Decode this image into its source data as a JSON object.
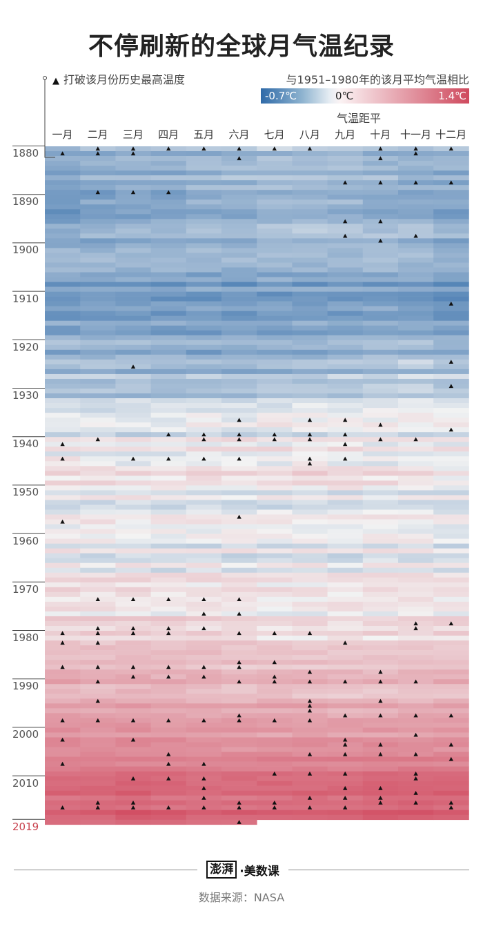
{
  "title": "不停刷新的全球月气温纪录",
  "legend": {
    "record_marker": "▲",
    "record_label": "打破该月份历史最高温度",
    "caption": "与1951–1980年的该月平均气温相比",
    "min_label": "-0.7℃",
    "zero_label": "0℃",
    "max_label": "1.4℃",
    "anomaly_title": "气温距平"
  },
  "colors": {
    "cold": "#2f6aa8",
    "neutral": "#f3f3f3",
    "warm": "#c81f3a",
    "marker": "#111111",
    "final_year": "#c9434f"
  },
  "chart_data": {
    "type": "heatmap",
    "title": "不停刷新的全球月气温纪录",
    "xlabel": "",
    "ylabel": "",
    "months": [
      "一月",
      "二月",
      "三月",
      "四月",
      "五月",
      "六月",
      "七月",
      "八月",
      "九月",
      "十月",
      "十一月",
      "十二月"
    ],
    "year_range": [
      1880,
      2019
    ],
    "year_ticks": [
      "1880",
      "1890",
      "1900",
      "1910",
      "1920",
      "1930",
      "1940",
      "1950",
      "1960",
      "1970",
      "1980",
      "1990",
      "2000",
      "2010",
      "2019"
    ],
    "value_range": [
      -0.7,
      1.4
    ],
    "value_unit": "℃",
    "last_year_months_available": 6,
    "decadal_anomaly_by_month": [
      {
        "decade": "1880s",
        "values": [
          -0.34,
          -0.3,
          -0.28,
          -0.3,
          -0.28,
          -0.26,
          -0.22,
          -0.24,
          -0.24,
          -0.28,
          -0.3,
          -0.3
        ]
      },
      {
        "decade": "1890s",
        "values": [
          -0.42,
          -0.38,
          -0.34,
          -0.32,
          -0.3,
          -0.3,
          -0.26,
          -0.26,
          -0.28,
          -0.3,
          -0.32,
          -0.36
        ]
      },
      {
        "decade": "1900s",
        "values": [
          -0.34,
          -0.36,
          -0.36,
          -0.38,
          -0.38,
          -0.38,
          -0.36,
          -0.36,
          -0.36,
          -0.34,
          -0.34,
          -0.38
        ]
      },
      {
        "decade": "1910s",
        "values": [
          -0.4,
          -0.38,
          -0.4,
          -0.4,
          -0.4,
          -0.4,
          -0.4,
          -0.4,
          -0.38,
          -0.36,
          -0.38,
          -0.44
        ]
      },
      {
        "decade": "1920s",
        "values": [
          -0.24,
          -0.26,
          -0.24,
          -0.26,
          -0.28,
          -0.28,
          -0.28,
          -0.26,
          -0.24,
          -0.22,
          -0.18,
          -0.22
        ]
      },
      {
        "decade": "1930s",
        "values": [
          -0.14,
          -0.14,
          -0.14,
          -0.14,
          -0.12,
          -0.12,
          -0.1,
          -0.1,
          -0.08,
          -0.08,
          -0.08,
          -0.1
        ]
      },
      {
        "decade": "1940s",
        "values": [
          0.06,
          0.06,
          0.04,
          0.06,
          0.06,
          0.06,
          0.06,
          0.08,
          0.06,
          0.04,
          0.02,
          0.02
        ]
      },
      {
        "decade": "1950s",
        "values": [
          -0.06,
          -0.06,
          -0.06,
          -0.06,
          -0.06,
          -0.06,
          -0.06,
          -0.06,
          -0.06,
          -0.06,
          -0.06,
          -0.08
        ]
      },
      {
        "decade": "1960s",
        "values": [
          0.0,
          0.0,
          0.0,
          -0.02,
          -0.02,
          -0.02,
          -0.02,
          -0.02,
          -0.04,
          -0.02,
          -0.02,
          -0.04
        ]
      },
      {
        "decade": "1970s",
        "values": [
          0.04,
          0.04,
          0.04,
          0.04,
          0.04,
          0.04,
          0.02,
          0.02,
          0.02,
          0.02,
          0.04,
          0.04
        ]
      },
      {
        "decade": "1980s",
        "values": [
          0.24,
          0.22,
          0.24,
          0.22,
          0.22,
          0.2,
          0.18,
          0.18,
          0.18,
          0.18,
          0.18,
          0.2
        ]
      },
      {
        "decade": "1990s",
        "values": [
          0.38,
          0.36,
          0.38,
          0.36,
          0.34,
          0.32,
          0.32,
          0.32,
          0.28,
          0.3,
          0.3,
          0.32
        ]
      },
      {
        "decade": "2000s",
        "values": [
          0.58,
          0.58,
          0.6,
          0.58,
          0.56,
          0.56,
          0.56,
          0.56,
          0.56,
          0.58,
          0.58,
          0.58
        ]
      },
      {
        "decade": "2010s",
        "values": [
          0.8,
          0.82,
          0.86,
          0.82,
          0.78,
          0.8,
          0.8,
          0.82,
          0.82,
          0.86,
          0.86,
          0.84
        ]
      }
    ],
    "record_years_by_month": [
      [
        1881,
        1941,
        1944,
        1957,
        1980,
        1982,
        1987,
        1998,
        2002,
        2007,
        2016
      ],
      [
        1880,
        1881,
        1889,
        1940,
        1973,
        1979,
        1980,
        1982,
        1987,
        1990,
        1994,
        1998,
        2015,
        2016
      ],
      [
        1880,
        1881,
        1889,
        1925,
        1944,
        1973,
        1979,
        1980,
        1987,
        1989,
        1998,
        2002,
        2010,
        2015,
        2016
      ],
      [
        1880,
        1889,
        1939,
        1944,
        1973,
        1979,
        1980,
        1987,
        1989,
        1998,
        2005,
        2007,
        2010,
        2016
      ],
      [
        1880,
        1939,
        1940,
        1944,
        1973,
        1976,
        1979,
        1987,
        1989,
        1998,
        2007,
        2010,
        2012,
        2014,
        2016
      ],
      [
        1880,
        1882,
        1936,
        1939,
        1940,
        1944,
        1956,
        1973,
        1976,
        1980,
        1986,
        1987,
        1990,
        1997,
        1998,
        2015,
        2016,
        2019
      ],
      [
        1880,
        1939,
        1940,
        1980,
        1986,
        1989,
        1990,
        1998,
        2009,
        2015,
        2016
      ],
      [
        1880,
        1936,
        1939,
        1940,
        1944,
        1945,
        1980,
        1988,
        1990,
        1994,
        1995,
        1996,
        1998,
        2005,
        2009,
        2014,
        2016
      ],
      [
        1887,
        1895,
        1898,
        1936,
        1939,
        1941,
        1944,
        1982,
        1990,
        1997,
        2002,
        2003,
        2005,
        2009,
        2012,
        2014,
        2016
      ],
      [
        1880,
        1882,
        1887,
        1895,
        1899,
        1937,
        1940,
        1988,
        1990,
        1994,
        1997,
        2003,
        2005,
        2012,
        2014,
        2015
      ],
      [
        1880,
        1881,
        1887,
        1898,
        1940,
        1978,
        1979,
        1990,
        1997,
        2001,
        2005,
        2009,
        2010,
        2013,
        2015
      ],
      [
        1880,
        1887,
        1912,
        1924,
        1929,
        1938,
        1978,
        1997,
        2003,
        2006,
        2015,
        2016
      ]
    ]
  },
  "footer": {
    "logo_mark": "澎湃",
    "logo_text": "·美数课",
    "source": "数据来源：NASA"
  }
}
